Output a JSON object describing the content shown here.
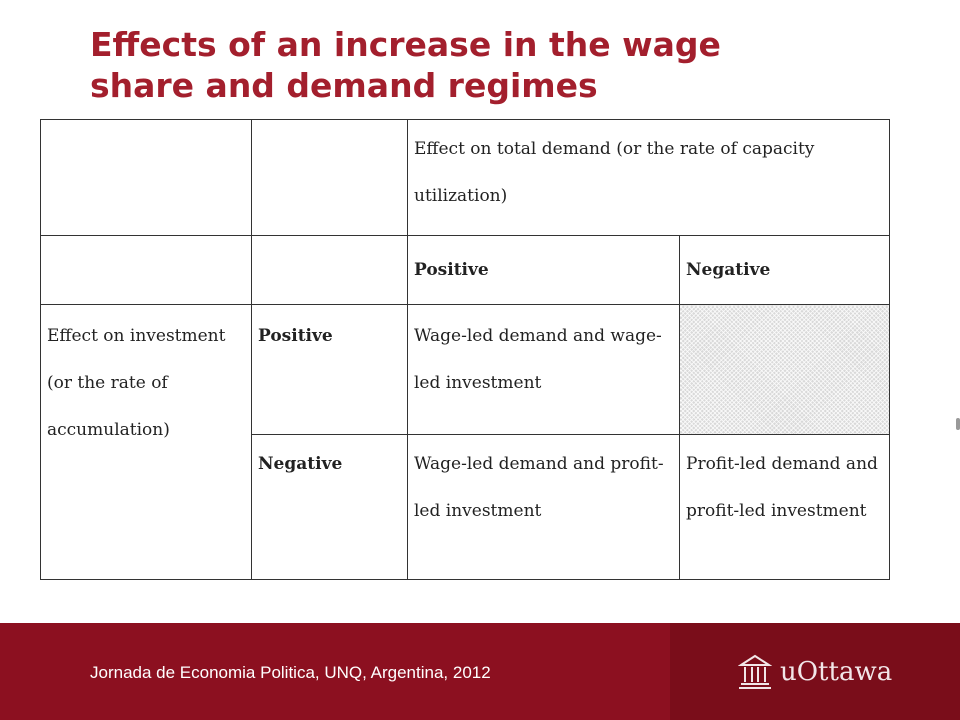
{
  "slide": {
    "title_line1": "Effects of an increase in the wage",
    "title_line2": "share and demand regimes"
  },
  "table": {
    "demand_header": "Effect on total demand (or the rate of capacity utilization)",
    "col_positive": "Positive",
    "col_negative": "Negative",
    "investment_header": "Effect on investment (or the rate of accumulation)",
    "row_positive": "Positive",
    "row_negative": "Negative",
    "cell_pos_pos": "Wage-led demand  and wage-led investment",
    "cell_neg_pos": "Wage-led demand and profit-led investment",
    "cell_neg_neg": "Profit-led demand and profit-led investment"
  },
  "footer": {
    "text": "Jornada de Economia Politica, UNQ, Argentina, 2012",
    "logo_text": "uOttawa",
    "logo_icon": "university-building-icon"
  },
  "colors": {
    "title": "#a31f2d",
    "footer_bg": "#8c1020",
    "footer_right_bg": "#7a0d1a"
  }
}
